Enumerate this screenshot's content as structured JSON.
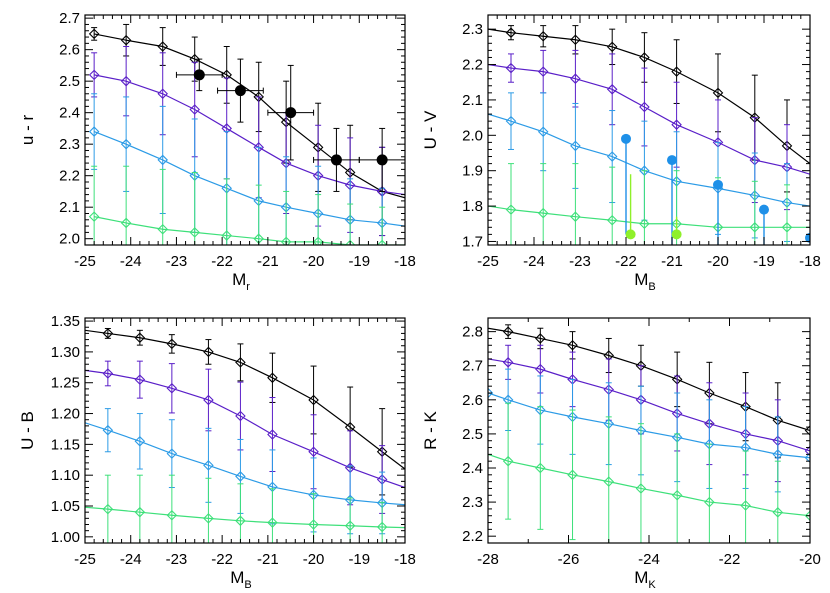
{
  "colors": {
    "black": "#000000",
    "purple": "#5a1fc8",
    "blue": "#2c9be6",
    "green": "#3ee07a",
    "lime": "#8ff02a",
    "obs_blue": "#1e90e8"
  },
  "chart_data": [
    {
      "type": "line",
      "panel": "top-left",
      "xlabel": "M",
      "xlabel_sub": "r",
      "ylabel": "u - r",
      "xlim": [
        -25,
        -18
      ],
      "ylim": [
        1.98,
        2.71
      ],
      "xticks": [
        -25,
        -24,
        -23,
        -22,
        -21,
        -20,
        -19,
        -18
      ],
      "xtick_labels": [
        "-25",
        "-24",
        "-23",
        "-22",
        "-21",
        "-20",
        "-19",
        "-18"
      ],
      "yticks": [
        2.0,
        2.1,
        2.2,
        2.3,
        2.4,
        2.5,
        2.6,
        2.7
      ],
      "ytick_labels": [
        "2.0",
        "2.1",
        "2.2",
        "2.3",
        "2.4",
        "2.5",
        "2.6",
        "2.7"
      ],
      "series": [
        {
          "color": "black",
          "x": [
            -24.8,
            -24.1,
            -23.3,
            -22.6,
            -21.9,
            -21.2,
            -20.6,
            -19.9,
            -19.2,
            -18.5,
            -18.0
          ],
          "y": [
            2.65,
            2.63,
            2.61,
            2.57,
            2.52,
            2.45,
            2.37,
            2.29,
            2.21,
            2.15,
            2.13
          ],
          "err": [
            0.02,
            0.05,
            0.06,
            0.07,
            0.09,
            0.11,
            0.13,
            0.14,
            0.15,
            0.14,
            0.0
          ],
          "markers": [
            0,
            1,
            2,
            3,
            4,
            5,
            6,
            7,
            8,
            9
          ]
        },
        {
          "color": "purple",
          "x": [
            -24.8,
            -24.1,
            -23.3,
            -22.6,
            -21.9,
            -21.2,
            -20.6,
            -19.9,
            -19.2,
            -18.5,
            -18.0
          ],
          "y": [
            2.52,
            2.5,
            2.46,
            2.41,
            2.35,
            2.29,
            2.24,
            2.2,
            2.17,
            2.15,
            2.14
          ],
          "err": [
            0.07,
            0.11,
            0.13,
            0.15,
            0.16,
            0.16,
            0.16,
            0.16,
            0.15,
            0.14,
            0.0
          ],
          "markers": [
            0,
            1,
            2,
            3,
            4,
            5,
            6,
            7,
            8,
            9
          ]
        },
        {
          "color": "blue",
          "x": [
            -24.8,
            -24.1,
            -23.3,
            -22.6,
            -21.9,
            -21.2,
            -20.6,
            -19.9,
            -19.2,
            -18.5,
            -18.0
          ],
          "y": [
            2.34,
            2.3,
            2.25,
            2.2,
            2.16,
            2.12,
            2.1,
            2.08,
            2.06,
            2.05,
            2.04
          ],
          "err": [
            0.12,
            0.15,
            0.17,
            0.18,
            0.18,
            0.17,
            0.16,
            0.15,
            0.13,
            0.11,
            0.0
          ],
          "markers": [
            0,
            1,
            2,
            3,
            4,
            5,
            6,
            7,
            8,
            9
          ]
        },
        {
          "color": "green",
          "x": [
            -24.8,
            -24.1,
            -23.3,
            -22.6,
            -21.9,
            -21.2,
            -20.6,
            -19.9,
            -19.2,
            -18.5,
            -18.0
          ],
          "y": [
            2.07,
            2.05,
            2.03,
            2.02,
            2.01,
            2.0,
            1.99,
            1.99,
            1.98,
            1.98,
            1.98
          ],
          "err": [
            0.16,
            0.18,
            0.19,
            0.19,
            0.18,
            0.17,
            0.16,
            0.15,
            0.13,
            0.12,
            0.0
          ],
          "markers": [
            0,
            1,
            2,
            3,
            4,
            5,
            6,
            7,
            8,
            9
          ]
        }
      ],
      "observed": {
        "color": "black",
        "x": [
          -22.5,
          -21.6,
          -20.5,
          -19.5,
          -18.5
        ],
        "y": [
          2.52,
          2.47,
          2.4,
          2.25,
          2.25
        ],
        "xerr": [
          0.5,
          0.5,
          0.5,
          0.5,
          0.5
        ],
        "yerr": [
          0.05,
          0.1,
          0.15,
          0.1,
          0.1
        ]
      }
    },
    {
      "type": "line",
      "panel": "top-right",
      "xlabel": "M",
      "xlabel_sub": "B",
      "ylabel": "U - V",
      "xlim": [
        -25,
        -18
      ],
      "ylim": [
        1.69,
        2.34
      ],
      "xticks": [
        -25,
        -24,
        -23,
        -22,
        -21,
        -20,
        -19,
        -18
      ],
      "xtick_labels": [
        "-25",
        "-24",
        "-23",
        "-22",
        "-21",
        "-20",
        "-19",
        "-18"
      ],
      "yticks": [
        1.7,
        1.8,
        1.9,
        2.0,
        2.1,
        2.2,
        2.3
      ],
      "ytick_labels": [
        "1.7",
        "1.8",
        "1.9",
        "2.0",
        "2.1",
        "2.2",
        "2.3"
      ],
      "series": [
        {
          "color": "black",
          "x": [
            -25.0,
            -24.5,
            -23.8,
            -23.1,
            -22.3,
            -21.6,
            -20.9,
            -20.0,
            -19.2,
            -18.5,
            -18.0
          ],
          "y": [
            2.3,
            2.29,
            2.28,
            2.27,
            2.25,
            2.22,
            2.18,
            2.12,
            2.05,
            1.97,
            1.92
          ],
          "err": [
            0.0,
            0.02,
            0.03,
            0.04,
            0.05,
            0.07,
            0.09,
            0.11,
            0.12,
            0.13,
            0.0
          ],
          "markers": [
            1,
            2,
            3,
            4,
            5,
            6,
            7,
            8,
            9
          ]
        },
        {
          "color": "purple",
          "x": [
            -25.0,
            -24.5,
            -23.8,
            -23.1,
            -22.3,
            -21.6,
            -20.9,
            -20.0,
            -19.2,
            -18.5,
            -18.0
          ],
          "y": [
            2.2,
            2.19,
            2.18,
            2.16,
            2.13,
            2.08,
            2.03,
            1.98,
            1.93,
            1.91,
            1.89
          ],
          "err": [
            0.0,
            0.04,
            0.06,
            0.08,
            0.1,
            0.11,
            0.12,
            0.12,
            0.12,
            0.12,
            0.0
          ],
          "markers": [
            1,
            2,
            3,
            4,
            5,
            6,
            7,
            8,
            9
          ]
        },
        {
          "color": "blue",
          "x": [
            -25.0,
            -24.5,
            -23.8,
            -23.1,
            -22.3,
            -21.6,
            -20.9,
            -20.0,
            -19.2,
            -18.5,
            -18.0
          ],
          "y": [
            2.06,
            2.04,
            2.01,
            1.97,
            1.94,
            1.9,
            1.87,
            1.85,
            1.83,
            1.81,
            1.8
          ],
          "err": [
            0.0,
            0.08,
            0.11,
            0.12,
            0.13,
            0.14,
            0.14,
            0.13,
            0.12,
            0.11,
            0.0
          ],
          "markers": [
            1,
            2,
            3,
            4,
            5,
            6,
            7,
            8,
            9
          ]
        },
        {
          "color": "green",
          "x": [
            -25.0,
            -24.5,
            -23.8,
            -23.1,
            -22.3,
            -21.6,
            -20.9,
            -20.0,
            -19.2,
            -18.5,
            -18.0
          ],
          "y": [
            1.8,
            1.79,
            1.78,
            1.77,
            1.76,
            1.75,
            1.75,
            1.74,
            1.74,
            1.74,
            1.74
          ],
          "err": [
            0.0,
            0.13,
            0.14,
            0.15,
            0.15,
            0.15,
            0.15,
            0.14,
            0.13,
            0.12,
            0.0
          ],
          "markers": [
            1,
            2,
            3,
            4,
            5,
            6,
            7,
            8,
            9
          ]
        }
      ],
      "observed_points": [
        {
          "color": "obs_blue",
          "x": -22.0,
          "y": 1.99,
          "yerr_low": 0.27
        },
        {
          "color": "lime",
          "x": -21.9,
          "y": 1.72,
          "yerr_high": 0.17
        },
        {
          "color": "obs_blue",
          "x": -21.0,
          "y": 1.93,
          "yerr_low": 0.24
        },
        {
          "color": "lime",
          "x": -20.9,
          "y": 1.72,
          "yerr_high": 0.05
        },
        {
          "color": "obs_blue",
          "x": -20.0,
          "y": 1.86,
          "yerr_low": 0.17
        },
        {
          "color": "obs_blue",
          "x": -19.0,
          "y": 1.79,
          "yerr_low": 0.1
        },
        {
          "color": "obs_blue",
          "x": -18.0,
          "y": 1.71
        }
      ]
    },
    {
      "type": "line",
      "panel": "bottom-left",
      "xlabel": "M",
      "xlabel_sub": "B",
      "ylabel": "U - B",
      "xlim": [
        -25,
        -18
      ],
      "ylim": [
        0.99,
        1.355
      ],
      "xticks": [
        -25,
        -24,
        -23,
        -22,
        -21,
        -20,
        -19,
        -18
      ],
      "xtick_labels": [
        "-25",
        "-24",
        "-23",
        "-22",
        "-21",
        "-20",
        "-19",
        "-18"
      ],
      "yticks": [
        1.0,
        1.05,
        1.1,
        1.15,
        1.2,
        1.25,
        1.3,
        1.35
      ],
      "ytick_labels": [
        "1.00",
        "1.05",
        "1.10",
        "1.15",
        "1.20",
        "1.25",
        "1.30",
        "1.35"
      ],
      "series": [
        {
          "color": "black",
          "x": [
            -25.0,
            -24.5,
            -23.8,
            -23.1,
            -22.3,
            -21.6,
            -20.9,
            -20.0,
            -19.2,
            -18.5,
            -18.0
          ],
          "y": [
            1.335,
            1.33,
            1.323,
            1.313,
            1.3,
            1.283,
            1.258,
            1.222,
            1.178,
            1.138,
            1.11
          ],
          "err": [
            0.0,
            0.008,
            0.012,
            0.015,
            0.02,
            0.03,
            0.04,
            0.055,
            0.065,
            0.07,
            0.0
          ],
          "markers": [
            1,
            2,
            3,
            4,
            5,
            6,
            7,
            8,
            9
          ]
        },
        {
          "color": "purple",
          "x": [
            -25.0,
            -24.5,
            -23.8,
            -23.1,
            -22.3,
            -21.6,
            -20.9,
            -20.0,
            -19.2,
            -18.5,
            -18.0
          ],
          "y": [
            1.27,
            1.265,
            1.255,
            1.241,
            1.222,
            1.196,
            1.166,
            1.138,
            1.112,
            1.093,
            1.08
          ],
          "err": [
            0.0,
            0.02,
            0.03,
            0.04,
            0.05,
            0.055,
            0.06,
            0.06,
            0.06,
            0.055,
            0.0
          ],
          "markers": [
            1,
            2,
            3,
            4,
            5,
            6,
            7,
            8,
            9
          ]
        },
        {
          "color": "blue",
          "x": [
            -25.0,
            -24.5,
            -23.8,
            -23.1,
            -22.3,
            -21.6,
            -20.9,
            -20.0,
            -19.2,
            -18.5,
            -18.0
          ],
          "y": [
            1.185,
            1.173,
            1.155,
            1.135,
            1.116,
            1.098,
            1.081,
            1.068,
            1.06,
            1.055,
            1.052
          ],
          "err": [
            0.0,
            0.035,
            0.045,
            0.055,
            0.06,
            0.06,
            0.06,
            0.06,
            0.055,
            0.05,
            0.0
          ],
          "markers": [
            1,
            2,
            3,
            4,
            5,
            6,
            7,
            8,
            9
          ]
        },
        {
          "color": "green",
          "x": [
            -25.0,
            -24.5,
            -23.8,
            -23.1,
            -22.3,
            -21.6,
            -20.9,
            -20.0,
            -19.2,
            -18.5,
            -18.0
          ],
          "y": [
            1.048,
            1.045,
            1.04,
            1.035,
            1.03,
            1.026,
            1.023,
            1.02,
            1.018,
            1.016,
            1.015
          ],
          "err": [
            0.0,
            0.055,
            0.06,
            0.065,
            0.065,
            0.06,
            0.055,
            0.05,
            0.045,
            0.04,
            0.0
          ],
          "markers": [
            1,
            2,
            3,
            4,
            5,
            6,
            7,
            8,
            9
          ]
        }
      ]
    },
    {
      "type": "line",
      "panel": "bottom-right",
      "xlabel": "M",
      "xlabel_sub": "K",
      "ylabel": "R - K",
      "xlim": [
        -28,
        -20
      ],
      "ylim": [
        2.18,
        2.84
      ],
      "xticks": [
        -28,
        -26,
        -24,
        -22,
        -20
      ],
      "xtick_labels": [
        "-28",
        "-26",
        "-24",
        "-22",
        "-20"
      ],
      "minor_xticks": [
        -27,
        -25,
        -23,
        -21
      ],
      "yticks": [
        2.2,
        2.3,
        2.4,
        2.5,
        2.6,
        2.7,
        2.8
      ],
      "ytick_labels": [
        "2.2",
        "2.3",
        "2.4",
        "2.5",
        "2.6",
        "2.7",
        "2.8"
      ],
      "series": [
        {
          "color": "black",
          "x": [
            -28.0,
            -27.5,
            -26.7,
            -25.9,
            -25.0,
            -24.2,
            -23.3,
            -22.5,
            -21.6,
            -20.8,
            -20.0
          ],
          "y": [
            2.81,
            2.8,
            2.78,
            2.76,
            2.73,
            2.7,
            2.66,
            2.62,
            2.58,
            2.54,
            2.51
          ],
          "err": [
            0.0,
            0.02,
            0.03,
            0.04,
            0.05,
            0.06,
            0.08,
            0.09,
            0.1,
            0.11,
            0.0
          ],
          "markers": [
            1,
            2,
            3,
            4,
            5,
            6,
            7,
            8,
            9,
            10
          ]
        },
        {
          "color": "purple",
          "x": [
            -28.0,
            -27.5,
            -26.7,
            -25.9,
            -25.0,
            -24.2,
            -23.3,
            -22.5,
            -21.6,
            -20.8,
            -20.0
          ],
          "y": [
            2.72,
            2.71,
            2.69,
            2.66,
            2.63,
            2.6,
            2.56,
            2.53,
            2.5,
            2.48,
            2.45
          ],
          "err": [
            0.0,
            0.05,
            0.07,
            0.08,
            0.09,
            0.1,
            0.11,
            0.12,
            0.12,
            0.12,
            0.0
          ],
          "markers": [
            1,
            2,
            3,
            4,
            5,
            6,
            7,
            8,
            9,
            10
          ]
        },
        {
          "color": "blue",
          "x": [
            -28.0,
            -27.5,
            -26.7,
            -25.9,
            -25.0,
            -24.2,
            -23.3,
            -22.5,
            -21.6,
            -20.8,
            -20.0
          ],
          "y": [
            2.62,
            2.6,
            2.57,
            2.55,
            2.53,
            2.51,
            2.49,
            2.47,
            2.46,
            2.44,
            2.43
          ],
          "err": [
            0.0,
            0.09,
            0.1,
            0.11,
            0.12,
            0.13,
            0.13,
            0.13,
            0.12,
            0.11,
            0.0
          ],
          "markers": [
            0,
            1,
            2,
            3,
            4,
            5,
            6,
            7,
            8,
            9,
            10
          ]
        },
        {
          "color": "green",
          "x": [
            -28.0,
            -27.5,
            -26.7,
            -25.9,
            -25.0,
            -24.2,
            -23.3,
            -22.5,
            -21.6,
            -20.8,
            -20.0
          ],
          "y": [
            2.44,
            2.42,
            2.4,
            2.38,
            2.36,
            2.34,
            2.32,
            2.3,
            2.29,
            2.27,
            2.26
          ],
          "err": [
            0.0,
            0.17,
            0.18,
            0.19,
            0.19,
            0.19,
            0.18,
            0.17,
            0.16,
            0.15,
            0.0
          ],
          "markers": [
            1,
            2,
            3,
            4,
            5,
            6,
            7,
            8,
            9,
            10
          ]
        }
      ]
    }
  ]
}
